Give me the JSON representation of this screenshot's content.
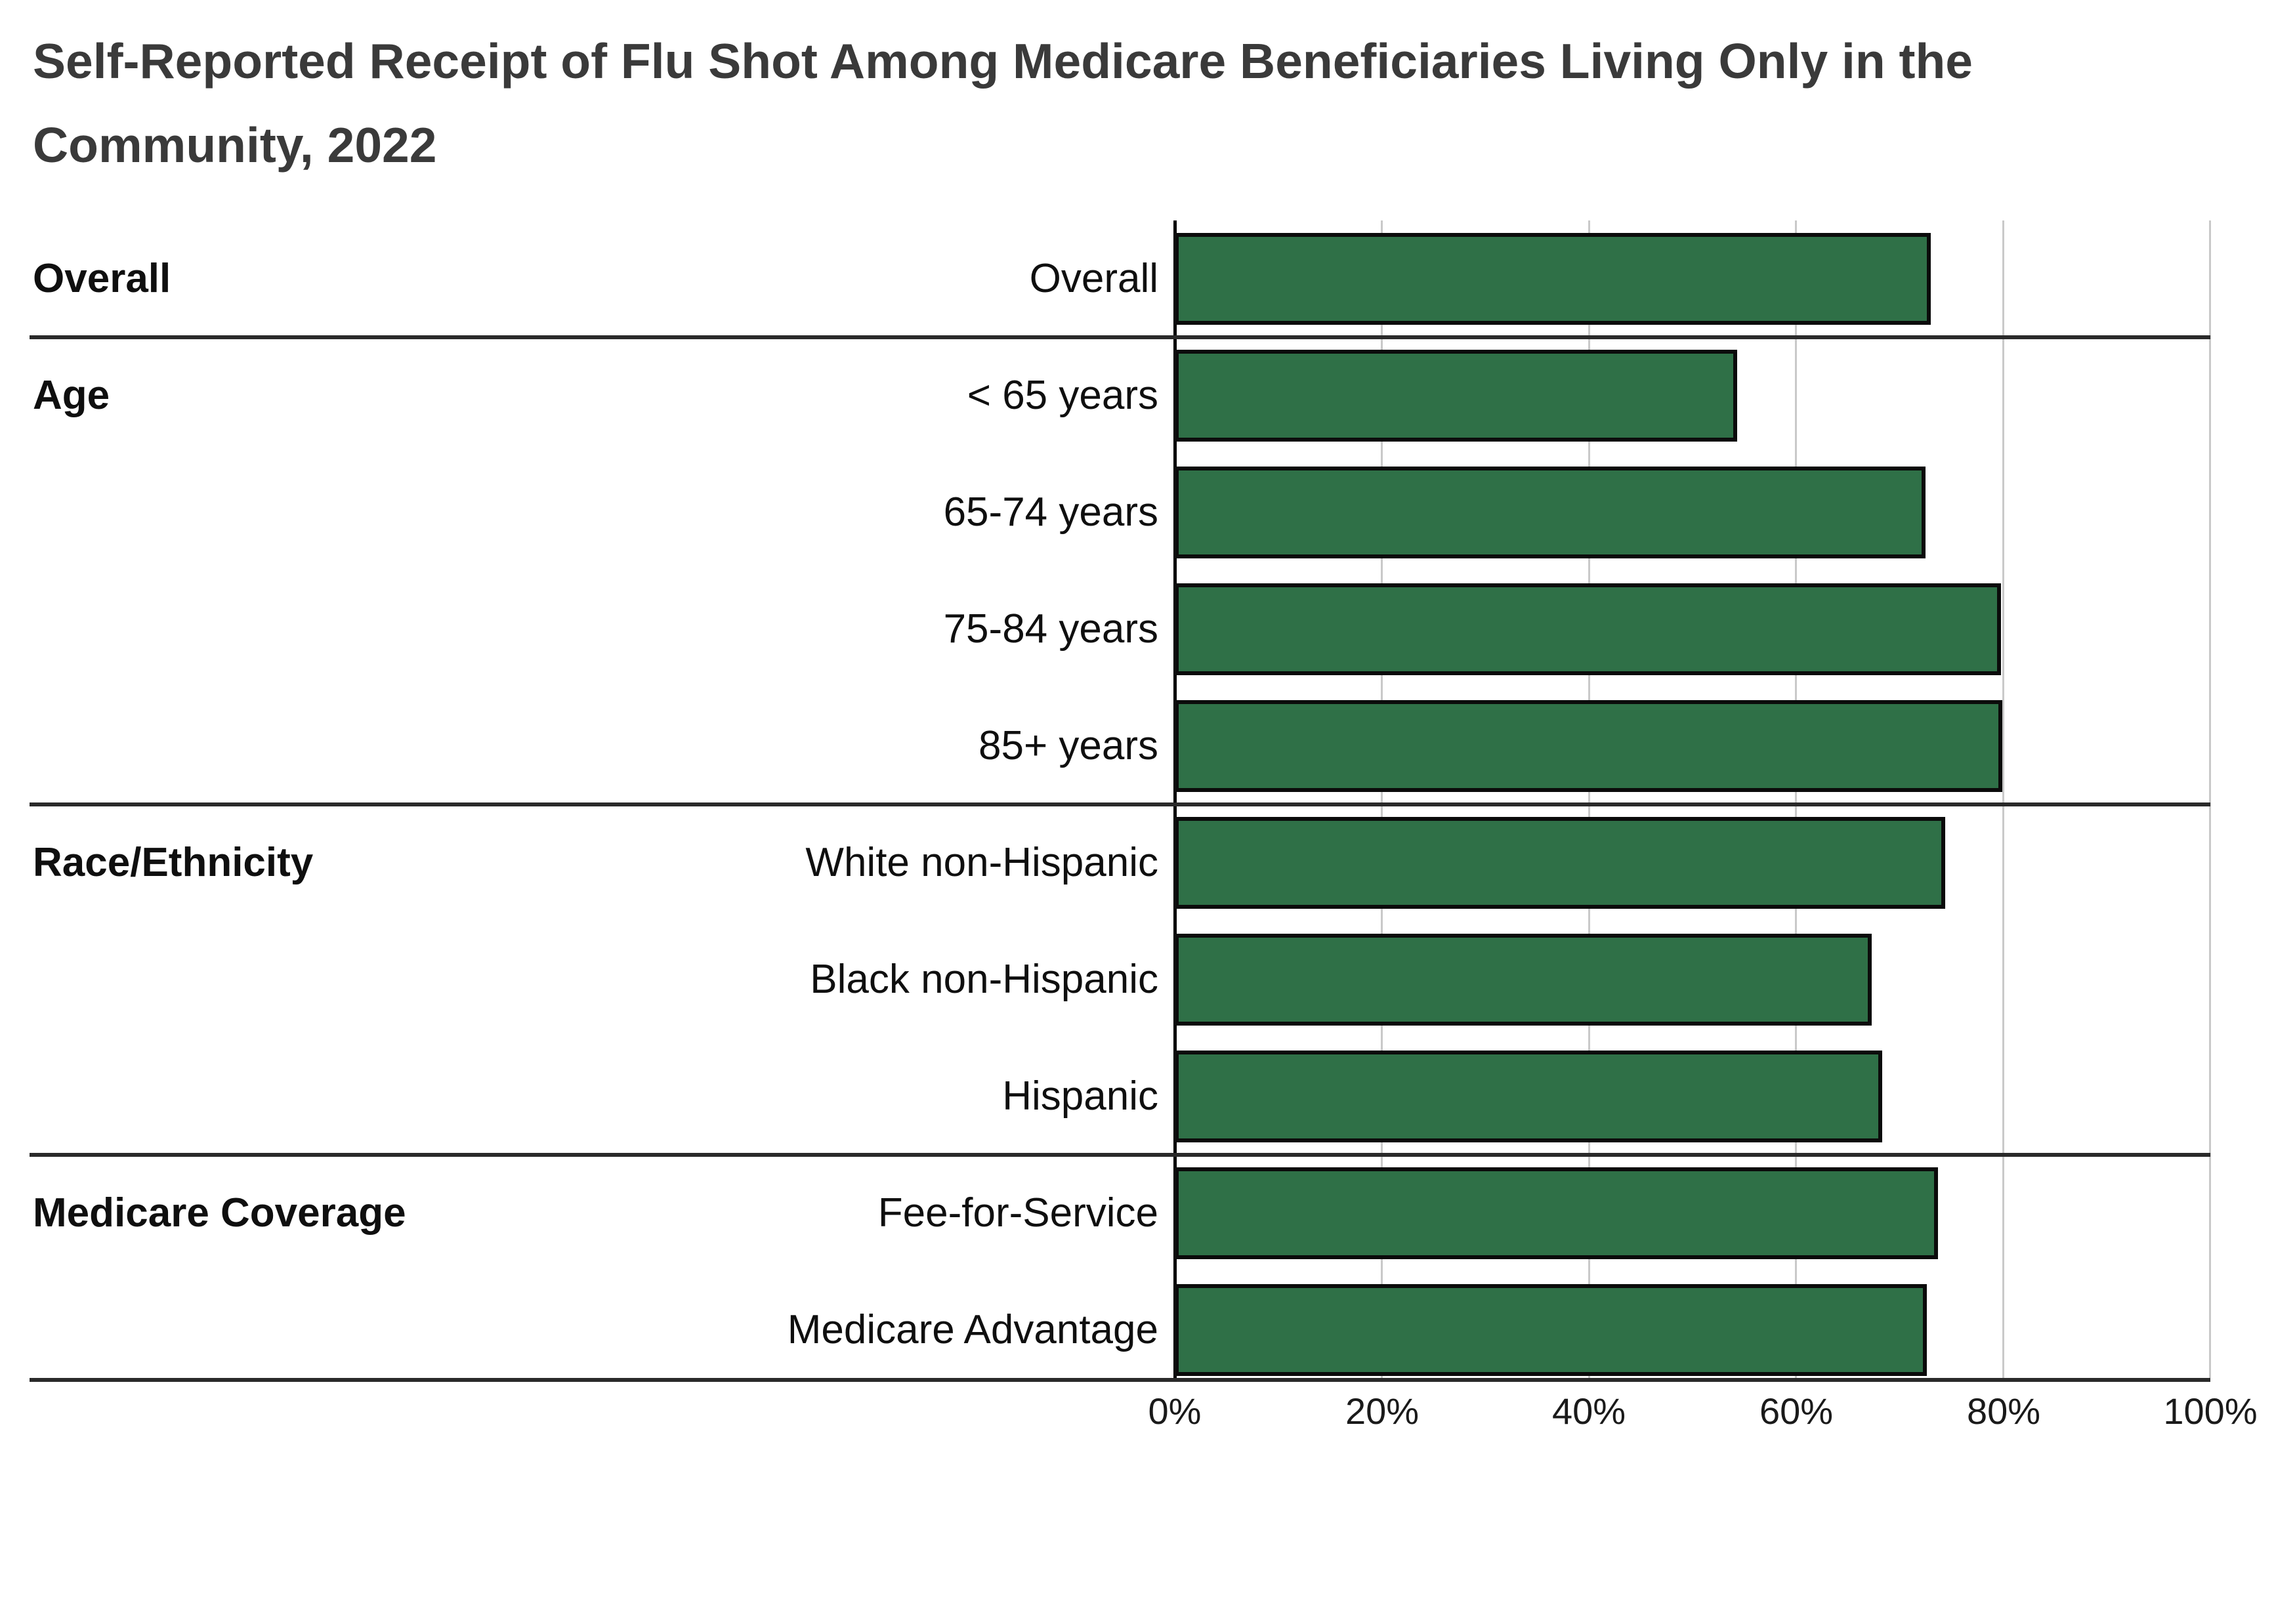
{
  "title": "Self-Reported Receipt of Flu Shot Among Medicare Beneficiaries Living Only in the Community, 2022",
  "groups": [
    {
      "label": "Overall",
      "rows": [
        "Overall"
      ]
    },
    {
      "label": "Age",
      "rows": [
        "< 65 years",
        "65-74 years",
        "75-84 years",
        "85+ years"
      ]
    },
    {
      "label": "Race/Ethnicity",
      "rows": [
        "White non-Hispanic",
        "Black non-Hispanic",
        "Hispanic"
      ]
    },
    {
      "label": "Medicare Coverage",
      "rows": [
        "Fee-for-Service",
        "Medicare Advantage"
      ]
    }
  ],
  "axis": {
    "ticks": [
      "0%",
      "20%",
      "40%",
      "60%",
      "80%",
      "100%"
    ],
    "min": 0,
    "max": 100
  },
  "colors": {
    "bar_fill": "#2F7047",
    "bar_border": "#0b0b0b",
    "gridline": "#c9c9c9",
    "axis_line": "#000000",
    "separator": "#2a2a2a",
    "title_text": "#3a3a3a",
    "label_text": "#0f0f0f"
  },
  "chart_data": {
    "type": "bar",
    "orientation": "horizontal",
    "title": "Self-Reported Receipt of Flu Shot Among Medicare Beneficiaries Living Only in the Community, 2022",
    "categories": [
      "Overall",
      "< 65 years",
      "65-74 years",
      "75-84 years",
      "85+ years",
      "White non-Hispanic",
      "Black non-Hispanic",
      "Hispanic",
      "Fee-for-Service",
      "Medicare Advantage"
    ],
    "values": [
      73.0,
      54.3,
      72.5,
      79.8,
      79.9,
      74.4,
      67.3,
      68.3,
      73.7,
      72.6
    ],
    "value_unit": "%",
    "xlabel": "",
    "ylabel": "",
    "xlim": [
      0,
      100
    ],
    "x_ticks_percent": [
      0,
      20,
      40,
      60,
      80,
      100
    ],
    "grid": "vertical-gridlines-on",
    "legend": "none",
    "section_breaks_after": [
      "Overall",
      "85+ years",
      "Hispanic"
    ]
  }
}
